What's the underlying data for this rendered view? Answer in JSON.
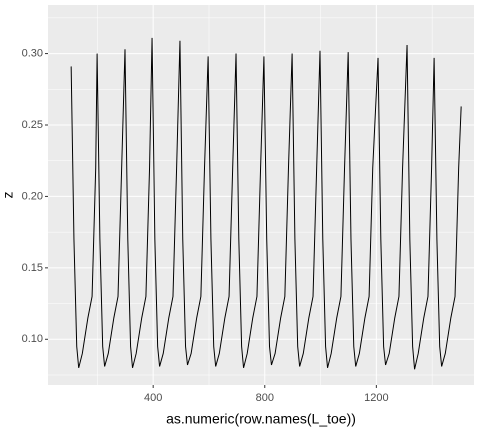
{
  "chart_data": {
    "type": "line",
    "x_label": "as.numeric(row.names(L_toe))",
    "y_label": "z",
    "xlim": [
      23,
      1550
    ],
    "ylim": [
      0.068,
      0.334
    ],
    "xticks": [
      400,
      800,
      1200
    ],
    "xminorticks": [
      200,
      600,
      1000,
      1400
    ],
    "yticks": [
      {
        "value": 0.1,
        "label": "0.10"
      },
      {
        "value": 0.15,
        "label": "0.15"
      },
      {
        "value": 0.2,
        "label": "0.20"
      },
      {
        "value": 0.25,
        "label": "0.25"
      },
      {
        "value": 0.3,
        "label": "0.30"
      }
    ],
    "yminorticks": [
      0.075,
      0.125,
      0.175,
      0.225,
      0.275,
      0.325
    ],
    "grid": true,
    "series": [
      {
        "color": "#000000",
        "x": [
          106,
          116,
          126,
          133,
          146,
          166,
          181,
          194,
          199,
          209,
          219,
          226,
          239,
          259,
          274,
          287,
          299,
          309,
          319,
          326,
          339,
          359,
          374,
          387,
          396,
          406,
          416,
          423,
          436,
          456,
          471,
          484,
          496,
          506,
          516,
          523,
          536,
          556,
          571,
          584,
          597,
          607,
          617,
          624,
          637,
          657,
          672,
          685,
          697,
          707,
          717,
          724,
          737,
          757,
          772,
          785,
          797,
          807,
          817,
          824,
          837,
          857,
          872,
          885,
          898,
          908,
          918,
          925,
          938,
          958,
          973,
          986,
          998,
          1008,
          1018,
          1025,
          1038,
          1058,
          1073,
          1086,
          1099,
          1109,
          1119,
          1126,
          1139,
          1159,
          1174,
          1187,
          1206,
          1216,
          1226,
          1233,
          1246,
          1266,
          1281,
          1294,
          1310,
          1320,
          1330,
          1337,
          1350,
          1370,
          1385,
          1398,
          1407,
          1417,
          1427,
          1434,
          1447,
          1467,
          1482,
          1495,
          1504
        ],
        "values": [
          0.291,
          0.17,
          0.095,
          0.08,
          0.09,
          0.115,
          0.13,
          0.22,
          0.3,
          0.17,
          0.095,
          0.081,
          0.09,
          0.115,
          0.13,
          0.22,
          0.303,
          0.17,
          0.095,
          0.08,
          0.09,
          0.115,
          0.13,
          0.22,
          0.311,
          0.17,
          0.095,
          0.081,
          0.09,
          0.115,
          0.13,
          0.22,
          0.309,
          0.17,
          0.095,
          0.082,
          0.09,
          0.115,
          0.13,
          0.22,
          0.298,
          0.17,
          0.095,
          0.081,
          0.09,
          0.115,
          0.13,
          0.22,
          0.3,
          0.17,
          0.095,
          0.08,
          0.09,
          0.115,
          0.13,
          0.22,
          0.298,
          0.17,
          0.095,
          0.082,
          0.09,
          0.115,
          0.13,
          0.22,
          0.3,
          0.17,
          0.095,
          0.081,
          0.09,
          0.115,
          0.13,
          0.22,
          0.302,
          0.17,
          0.095,
          0.08,
          0.09,
          0.115,
          0.13,
          0.22,
          0.301,
          0.17,
          0.095,
          0.081,
          0.09,
          0.115,
          0.13,
          0.22,
          0.297,
          0.17,
          0.095,
          0.082,
          0.09,
          0.115,
          0.13,
          0.22,
          0.306,
          0.17,
          0.095,
          0.079,
          0.09,
          0.115,
          0.13,
          0.22,
          0.297,
          0.17,
          0.095,
          0.081,
          0.09,
          0.115,
          0.13,
          0.22,
          0.263
        ]
      }
    ]
  }
}
